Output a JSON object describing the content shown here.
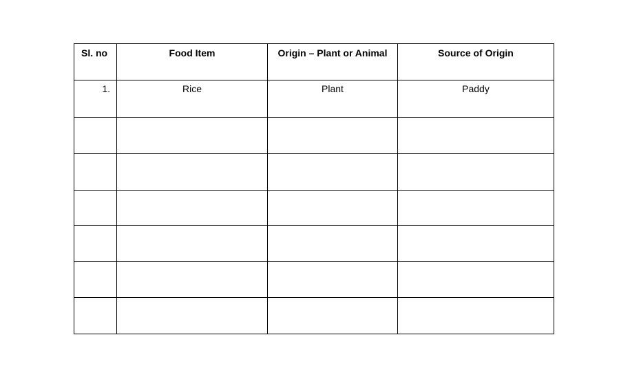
{
  "table": {
    "headers": [
      "Sl. no",
      "Food Item",
      "Origin – Plant or Animal",
      "Source of Origin"
    ],
    "rows": [
      [
        "1.",
        "Rice",
        "Plant",
        "Paddy"
      ],
      [
        "",
        "",
        "",
        ""
      ],
      [
        "",
        "",
        "",
        ""
      ],
      [
        "",
        "",
        "",
        ""
      ],
      [
        "",
        "",
        "",
        ""
      ],
      [
        "",
        "",
        "",
        ""
      ],
      [
        "",
        "",
        "",
        ""
      ]
    ]
  }
}
